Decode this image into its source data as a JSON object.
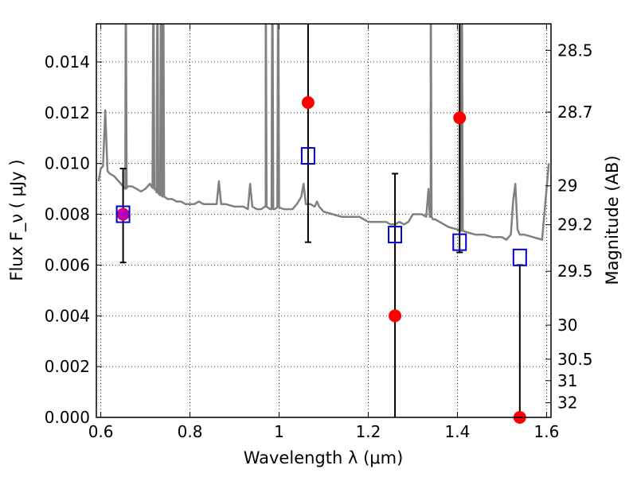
{
  "chart_data": {
    "type": "scatter",
    "xlabel": "Wavelength  λ (μm)",
    "ylabel": "Flux  F_ν  ( μJy )",
    "ylabel_right": "Magnitude (AB)",
    "xlim": [
      0.59,
      1.61
    ],
    "ylim": [
      0.0,
      0.0155
    ],
    "grid": true,
    "x_ticks": [
      0.6,
      0.8,
      1.0,
      1.2,
      1.4,
      1.6
    ],
    "x_tick_labels": [
      "0.6",
      "0.8",
      "1",
      "1.2",
      "1.4",
      "1.6"
    ],
    "y_ticks": [
      0.0,
      0.002,
      0.004,
      0.006,
      0.008,
      0.01,
      0.012,
      0.014
    ],
    "y_tick_labels": [
      "0.000",
      "0.002",
      "0.004",
      "0.006",
      "0.008",
      "0.010",
      "0.012",
      "0.014"
    ],
    "right_ticks": [
      {
        "label": "28.5",
        "mag": 28.5
      },
      {
        "label": "28.7",
        "mag": 28.7
      },
      {
        "label": "29",
        "mag": 29.0
      },
      {
        "label": "29.2",
        "mag": 29.2
      },
      {
        "label": "29.5",
        "mag": 29.5
      },
      {
        "label": "30",
        "mag": 30.0
      },
      {
        "label": "30.5",
        "mag": 30.5
      },
      {
        "label": "31",
        "mag": 31.0
      },
      {
        "label": "32",
        "mag": 32.0
      }
    ],
    "colors": {
      "model": "#808080",
      "observed": "#ff0000",
      "model_phot": "#0000cc",
      "errorbar": "#000000",
      "overlap": "#bb00bb"
    },
    "model_spectrum": {
      "name": "",
      "x": [
        0.595,
        0.6,
        0.605,
        0.61,
        0.615,
        0.62,
        0.63,
        0.64,
        0.645,
        0.65,
        0.655,
        0.66,
        0.67,
        0.68,
        0.69,
        0.7,
        0.71,
        0.72,
        0.725,
        0.73,
        0.74,
        0.75,
        0.76,
        0.77,
        0.78,
        0.79,
        0.8,
        0.81,
        0.82,
        0.83,
        0.84,
        0.85,
        0.86,
        0.865,
        0.87,
        0.875,
        0.88,
        0.9,
        0.92,
        0.93,
        0.935,
        0.94,
        0.95,
        0.96,
        0.97,
        0.98,
        0.99,
        1.0,
        1.01,
        1.02,
        1.03,
        1.04,
        1.05,
        1.055,
        1.06,
        1.065,
        1.07,
        1.08,
        1.085,
        1.09,
        1.1,
        1.12,
        1.14,
        1.16,
        1.18,
        1.2,
        1.22,
        1.24,
        1.25,
        1.26,
        1.27,
        1.28,
        1.29,
        1.3,
        1.31,
        1.32,
        1.33,
        1.335,
        1.34,
        1.345,
        1.35,
        1.36,
        1.38,
        1.4,
        1.42,
        1.44,
        1.46,
        1.48,
        1.5,
        1.51,
        1.52,
        1.525,
        1.53,
        1.535,
        1.54,
        1.55,
        1.57,
        1.59,
        1.6,
        1.605
      ],
      "y": [
        0.0093,
        0.0098,
        0.0099,
        0.0121,
        0.0097,
        0.0096,
        0.0095,
        0.0093,
        0.0092,
        0.0091,
        0.009,
        0.0091,
        0.0091,
        0.009,
        0.0089,
        0.009,
        0.0092,
        0.009,
        0.0089,
        0.0088,
        0.0087,
        0.0086,
        0.0086,
        0.0085,
        0.0085,
        0.0084,
        0.0084,
        0.0084,
        0.0085,
        0.0084,
        0.0084,
        0.0084,
        0.0084,
        0.0093,
        0.0084,
        0.0084,
        0.0084,
        0.0083,
        0.0083,
        0.0082,
        0.0092,
        0.0083,
        0.0082,
        0.0082,
        0.0083,
        0.0082,
        0.0082,
        0.0083,
        0.0082,
        0.0082,
        0.0082,
        0.0084,
        0.0087,
        0.0092,
        0.0084,
        0.0084,
        0.0084,
        0.0083,
        0.0085,
        0.0083,
        0.0081,
        0.008,
        0.0079,
        0.0079,
        0.0079,
        0.0077,
        0.0077,
        0.0077,
        0.0076,
        0.0076,
        0.0077,
        0.0076,
        0.0077,
        0.008,
        0.008,
        0.008,
        0.0079,
        0.009,
        0.0079,
        0.0078,
        0.0078,
        0.0077,
        0.0075,
        0.0074,
        0.0073,
        0.0072,
        0.0072,
        0.0071,
        0.0071,
        0.007,
        0.0072,
        0.0085,
        0.0092,
        0.0074,
        0.0072,
        0.0072,
        0.0071,
        0.007,
        0.009,
        0.01
      ],
      "emission_lines": [
        {
          "x": 0.656,
          "peak": 0.0155
        },
        {
          "x": 0.718,
          "peak": 0.0155
        },
        {
          "x": 0.727,
          "peak": 0.0155
        },
        {
          "x": 0.735,
          "peak": 0.0155
        },
        {
          "x": 0.74,
          "peak": 0.0155
        },
        {
          "x": 0.97,
          "peak": 0.0155
        },
        {
          "x": 0.985,
          "peak": 0.0155
        },
        {
          "x": 0.998,
          "peak": 0.0155
        },
        {
          "x": 1.34,
          "peak": 0.0155
        },
        {
          "x": 1.41,
          "peak": 0.0155
        }
      ]
    },
    "observed": {
      "name": "",
      "points": [
        {
          "x": 0.65,
          "y": 0.008,
          "yerr_low": 0.0061,
          "yerr_high": 0.0098
        },
        {
          "x": 1.065,
          "y": 0.0124,
          "yerr_low": 0.0069,
          "yerr_high": 0.0155
        },
        {
          "x": 1.26,
          "y": 0.004,
          "yerr_low": 0.0,
          "yerr_high": 0.0096
        },
        {
          "x": 1.405,
          "y": 0.0118,
          "yerr_low": 0.0065,
          "yerr_high": 0.0155
        },
        {
          "x": 1.54,
          "y": 0.0,
          "yerr_low": 0.0,
          "yerr_high": 0.006
        }
      ]
    },
    "model_photometry": {
      "name": "",
      "points": [
        {
          "x": 0.65,
          "y": 0.008
        },
        {
          "x": 1.065,
          "y": 0.0103
        },
        {
          "x": 1.26,
          "y": 0.0072
        },
        {
          "x": 1.405,
          "y": 0.0069
        },
        {
          "x": 1.54,
          "y": 0.0063
        }
      ]
    }
  }
}
